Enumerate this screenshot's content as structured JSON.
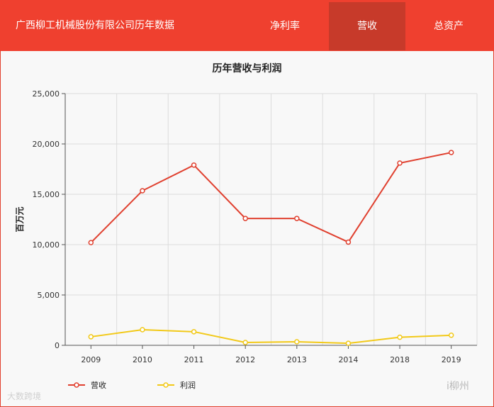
{
  "header": {
    "title": "广西柳工机械股份有限公司历年数据",
    "tabs": [
      {
        "label": "净利率",
        "active": false
      },
      {
        "label": "营收",
        "active": true
      },
      {
        "label": "总资产",
        "active": false
      }
    ]
  },
  "colors": {
    "header_bg": "#ef402f",
    "active_tab_bg": "#c73a2a",
    "revenue": "#e0402f",
    "profit": "#f2c918"
  },
  "watermark": {
    "left": "大数跨境",
    "right": "i柳州"
  },
  "chart_data": {
    "type": "line",
    "title": "历年营收与利润",
    "ylabel": "百万元",
    "xlabel": "",
    "categories": [
      "2009",
      "2010",
      "2011",
      "2012",
      "2013",
      "2014",
      "2018",
      "2019"
    ],
    "ylim": [
      0,
      25000
    ],
    "yticks": [
      0,
      5000,
      10000,
      15000,
      20000,
      25000
    ],
    "ytick_labels": [
      "0",
      "5,000",
      "10,000",
      "15,000",
      "20,000",
      "25,000"
    ],
    "grid": true,
    "legend_position": "bottom-left",
    "series": [
      {
        "name": "营收",
        "color": "#e0402f",
        "values": [
          10200,
          15350,
          17900,
          12600,
          12600,
          10250,
          18100,
          19150
        ]
      },
      {
        "name": "利润",
        "color": "#f2c918",
        "values": [
          850,
          1550,
          1350,
          280,
          350,
          200,
          800,
          1000
        ]
      }
    ]
  }
}
